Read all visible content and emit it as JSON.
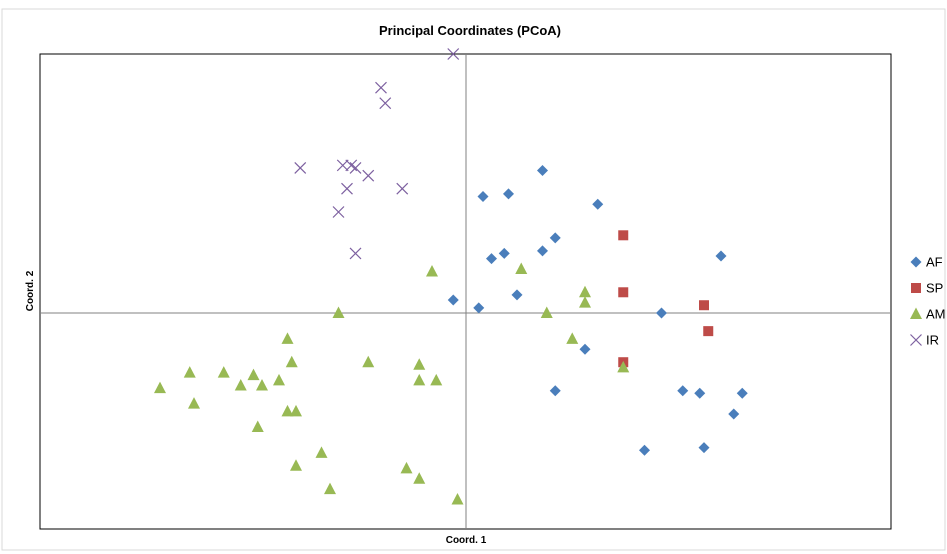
{
  "chart_data": {
    "type": "scatter",
    "title": "Principal Coordinates (PCoA)",
    "xlabel": "Coord. 1",
    "ylabel": "Coord. 2",
    "xlim": [
      -1.0,
      1.0
    ],
    "ylim": [
      -1.0,
      1.0
    ],
    "grid": false,
    "legend_position": "right",
    "series": [
      {
        "name": "AF",
        "marker": "diamond",
        "color": "#4a7ebb",
        "points": [
          [
            -0.03,
            0.05
          ],
          [
            0.03,
            0.02
          ],
          [
            0.04,
            0.45
          ],
          [
            0.1,
            0.46
          ],
          [
            0.18,
            0.55
          ],
          [
            0.06,
            0.21
          ],
          [
            0.09,
            0.23
          ],
          [
            0.18,
            0.24
          ],
          [
            0.21,
            0.29
          ],
          [
            0.31,
            0.42
          ],
          [
            0.12,
            0.07
          ],
          [
            0.28,
            -0.14
          ],
          [
            0.21,
            -0.3
          ],
          [
            0.46,
            0.0
          ],
          [
            0.6,
            0.22
          ],
          [
            0.51,
            -0.3
          ],
          [
            0.55,
            -0.31
          ],
          [
            0.65,
            -0.31
          ],
          [
            0.63,
            -0.39
          ],
          [
            0.42,
            -0.53
          ],
          [
            0.56,
            -0.52
          ]
        ]
      },
      {
        "name": "SP",
        "marker": "square",
        "color": "#be4b48",
        "points": [
          [
            0.37,
            0.3
          ],
          [
            0.37,
            0.08
          ],
          [
            0.56,
            0.03
          ],
          [
            0.57,
            -0.07
          ],
          [
            0.37,
            -0.19
          ]
        ]
      },
      {
        "name": "AM",
        "marker": "triangle",
        "color": "#98b954",
        "points": [
          [
            -0.08,
            0.16
          ],
          [
            0.13,
            0.17
          ],
          [
            0.28,
            0.08
          ],
          [
            0.28,
            0.04
          ],
          [
            0.19,
            0.0
          ],
          [
            -0.3,
            0.0
          ],
          [
            0.25,
            -0.1
          ],
          [
            0.37,
            -0.21
          ],
          [
            -0.42,
            -0.1
          ],
          [
            -0.41,
            -0.19
          ],
          [
            -0.23,
            -0.19
          ],
          [
            -0.11,
            -0.2
          ],
          [
            -0.11,
            -0.26
          ],
          [
            -0.07,
            -0.26
          ],
          [
            -0.57,
            -0.23
          ],
          [
            -0.53,
            -0.28
          ],
          [
            -0.5,
            -0.24
          ],
          [
            -0.48,
            -0.28
          ],
          [
            -0.44,
            -0.26
          ],
          [
            -0.65,
            -0.23
          ],
          [
            -0.72,
            -0.29
          ],
          [
            -0.64,
            -0.35
          ],
          [
            -0.42,
            -0.38
          ],
          [
            -0.4,
            -0.38
          ],
          [
            -0.49,
            -0.44
          ],
          [
            -0.34,
            -0.54
          ],
          [
            -0.4,
            -0.59
          ],
          [
            -0.32,
            -0.68
          ],
          [
            -0.14,
            -0.6
          ],
          [
            -0.11,
            -0.64
          ],
          [
            -0.02,
            -0.72
          ]
        ]
      },
      {
        "name": "IR",
        "marker": "x",
        "color": "#7d60a0",
        "points": [
          [
            -0.03,
            1.0
          ],
          [
            -0.2,
            0.87
          ],
          [
            -0.19,
            0.81
          ],
          [
            -0.39,
            0.56
          ],
          [
            -0.29,
            0.57
          ],
          [
            -0.27,
            0.57
          ],
          [
            -0.26,
            0.56
          ],
          [
            -0.23,
            0.53
          ],
          [
            -0.28,
            0.48
          ],
          [
            -0.15,
            0.48
          ],
          [
            -0.3,
            0.39
          ],
          [
            -0.26,
            0.23
          ]
        ]
      }
    ]
  }
}
